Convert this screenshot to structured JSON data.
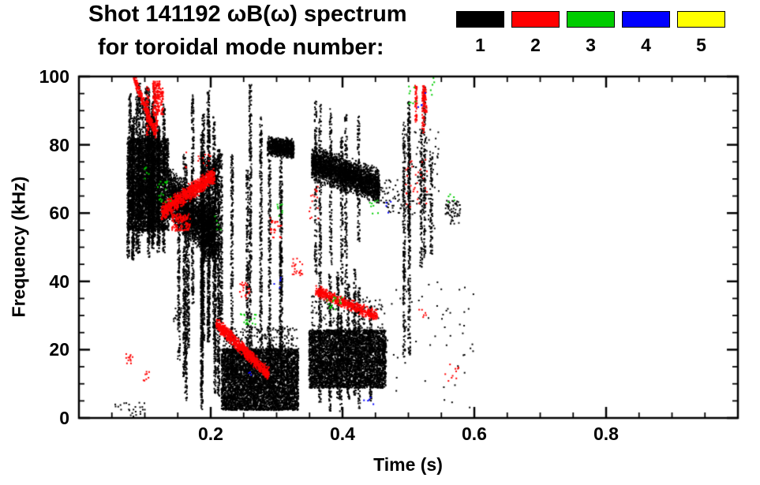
{
  "chart_data": {
    "type": "scatter",
    "title": "Shot 141192 ωB(ω) spectrum for toroidal mode number: 1 2 3 4 5",
    "title_lines": [
      "Shot 141192 ωB(ω) spectrum",
      "for toroidal mode number:"
    ],
    "xlabel": "Time (s)",
    "ylabel": "Frequency (kHz)",
    "xlim": [
      0.0,
      1.0
    ],
    "ylim": [
      0,
      100
    ],
    "xticks": [
      0.2,
      0.4,
      0.6,
      0.8
    ],
    "xtick_labels": [
      "0.2",
      "0.4",
      "0.6",
      "0.8"
    ],
    "yticks": [
      0,
      20,
      40,
      60,
      80,
      100
    ],
    "ytick_labels": [
      "0",
      "20",
      "40",
      "60",
      "80",
      "100"
    ],
    "x_minor_step": 0.05,
    "y_minor_step": 5,
    "grid": false,
    "legend": {
      "position": "top-right",
      "entries": [
        {
          "label": "1",
          "color": "#000000"
        },
        {
          "label": "2",
          "color": "#ff0000"
        },
        {
          "label": "3",
          "color": "#00cc00"
        },
        {
          "label": "4",
          "color": "#0000ff"
        },
        {
          "label": "5",
          "color": "#ffff00"
        }
      ]
    },
    "series": [
      {
        "name": "n=1",
        "color": "#000000",
        "clusters": [
          {
            "kind": "blob",
            "t": [
              0.073,
              0.135
            ],
            "f": [
              55,
              82
            ],
            "n": 3200
          },
          {
            "kind": "vstreaks",
            "t": [
              0.072,
              0.135
            ],
            "ftop": [
              82,
              100
            ],
            "fbot": [
              45,
              60
            ],
            "count": 22,
            "density": 2.5
          },
          {
            "kind": "band",
            "t": [
              0.135,
              0.205
            ],
            "f": [
              66,
              54
            ],
            "thick": 14,
            "n": 2600
          },
          {
            "kind": "vstreaks",
            "t": [
              0.14,
              0.215
            ],
            "ftop": [
              62,
              100
            ],
            "fbot": [
              2,
              35
            ],
            "count": 14,
            "density": 2
          },
          {
            "kind": "blob",
            "t": [
              0.185,
              0.212
            ],
            "f": [
              46,
              76
            ],
            "n": 900
          },
          {
            "kind": "vstreaks",
            "t": [
              0.205,
              0.215
            ],
            "ftop": [
              70,
              80
            ],
            "fbot": [
              2,
              10
            ],
            "count": 2,
            "density": 2.5
          },
          {
            "kind": "vstreaks",
            "t": [
              0.215,
              0.34
            ],
            "ftop": [
              55,
              100
            ],
            "fbot": [
              2,
              25
            ],
            "count": 7,
            "density": 1.8
          },
          {
            "kind": "band",
            "t": [
              0.285,
              0.325
            ],
            "f": [
              80,
              79
            ],
            "thick": 5,
            "n": 800
          },
          {
            "kind": "band",
            "t": [
              0.352,
              0.455
            ],
            "f": [
              75,
              68
            ],
            "thick": 9,
            "n": 2600
          },
          {
            "kind": "vstreaks",
            "t": [
              0.35,
              0.45
            ],
            "ftop": [
              80,
              97
            ],
            "fbot": [
              30,
              55
            ],
            "count": 6,
            "density": 1.5
          },
          {
            "kind": "blob",
            "t": [
              0.215,
              0.332
            ],
            "f": [
              2.5,
              20.5
            ],
            "n": 5200
          },
          {
            "kind": "specks",
            "t": [
              0.215,
              0.33
            ],
            "f": [
              20,
              27
            ],
            "n": 200
          },
          {
            "kind": "blob",
            "t": [
              0.348,
              0.465
            ],
            "f": [
              9,
              26
            ],
            "n": 4300
          },
          {
            "kind": "specks",
            "t": [
              0.35,
              0.46
            ],
            "f": [
              26,
              36
            ],
            "n": 150
          },
          {
            "kind": "vstreaks",
            "t": [
              0.352,
              0.46
            ],
            "ftop": [
              30,
              45
            ],
            "fbot": [
              1,
              7
            ],
            "count": 8,
            "density": 2
          },
          {
            "kind": "vstreaks",
            "t": [
              0.49,
              0.535
            ],
            "ftop": [
              70,
              100
            ],
            "fbot": [
              18,
              60
            ],
            "count": 6,
            "density": 1.6
          },
          {
            "kind": "specks",
            "t": [
              0.49,
              0.545
            ],
            "f": [
              55,
              85
            ],
            "n": 90
          },
          {
            "kind": "specks",
            "t": [
              0.455,
              0.49
            ],
            "f": [
              60,
              70
            ],
            "n": 50
          },
          {
            "kind": "specks",
            "t": [
              0.555,
              0.578
            ],
            "f": [
              57,
              64
            ],
            "n": 60
          },
          {
            "kind": "specks",
            "t": [
              0.46,
              0.6
            ],
            "f": [
              2,
              40
            ],
            "n": 60
          },
          {
            "kind": "specks",
            "t": [
              0.05,
              0.1
            ],
            "f": [
              0.5,
              5
            ],
            "n": 25
          },
          {
            "kind": "specks",
            "t": [
              0.14,
              0.155
            ],
            "f": [
              28,
              34
            ],
            "n": 15
          }
        ]
      },
      {
        "name": "n=2",
        "color": "#ff0000",
        "clusters": [
          {
            "kind": "band",
            "t": [
              0.082,
              0.116
            ],
            "f": [
              100,
              83
            ],
            "thick": 3,
            "n": 260
          },
          {
            "kind": "vstreaks",
            "t": [
              0.096,
              0.128
            ],
            "ftop": [
              96,
              100
            ],
            "fbot": [
              82,
              90
            ],
            "count": 5,
            "density": 2.5
          },
          {
            "kind": "band",
            "t": [
              0.124,
              0.205
            ],
            "f": [
              60.5,
              71.5
            ],
            "thick": 4.5,
            "n": 850
          },
          {
            "kind": "blob",
            "t": [
              0.14,
              0.168
            ],
            "f": [
              55,
              60
            ],
            "n": 130
          },
          {
            "kind": "specks",
            "t": [
              0.07,
              0.082
            ],
            "f": [
              16,
              19
            ],
            "n": 12
          },
          {
            "kind": "specks",
            "t": [
              0.096,
              0.106
            ],
            "f": [
              11,
              14
            ],
            "n": 8
          },
          {
            "kind": "band",
            "t": [
              0.207,
              0.287
            ],
            "f": [
              28,
              13
            ],
            "thick": 3.5,
            "n": 800
          },
          {
            "kind": "specks",
            "t": [
              0.243,
              0.258
            ],
            "f": [
              35,
              40
            ],
            "n": 22
          },
          {
            "kind": "specks",
            "t": [
              0.288,
              0.306
            ],
            "f": [
              53,
              59
            ],
            "n": 26
          },
          {
            "kind": "specks",
            "t": [
              0.322,
              0.338
            ],
            "f": [
              42,
              47
            ],
            "n": 22
          },
          {
            "kind": "band",
            "t": [
              0.358,
              0.452
            ],
            "f": [
              37.5,
              30
            ],
            "thick": 3,
            "n": 480
          },
          {
            "kind": "specks",
            "t": [
              0.348,
              0.362
            ],
            "f": [
              58,
              70
            ],
            "n": 16
          },
          {
            "kind": "specks",
            "t": [
              0.16,
              0.2
            ],
            "f": [
              73,
              78
            ],
            "n": 14
          },
          {
            "kind": "specks",
            "t": [
              0.495,
              0.528
            ],
            "f": [
              62,
              76
            ],
            "n": 30
          },
          {
            "kind": "vstreaks",
            "t": [
              0.505,
              0.525
            ],
            "ftop": [
              95,
              100
            ],
            "fbot": [
              83,
              90
            ],
            "count": 3,
            "density": 2.2
          },
          {
            "kind": "specks",
            "t": [
              0.553,
              0.575
            ],
            "f": [
              11,
              16
            ],
            "n": 10
          },
          {
            "kind": "specks",
            "t": [
              0.515,
              0.53
            ],
            "f": [
              28,
              33
            ],
            "n": 6
          }
        ]
      },
      {
        "name": "n=3",
        "color": "#00cc00",
        "clusters": [
          {
            "kind": "specks",
            "t": [
              0.118,
              0.138
            ],
            "f": [
              63,
              70
            ],
            "n": 20
          },
          {
            "kind": "specks",
            "t": [
              0.097,
              0.107
            ],
            "f": [
              70,
              74
            ],
            "n": 6
          },
          {
            "kind": "specks",
            "t": [
              0.243,
              0.268
            ],
            "f": [
              27,
              32
            ],
            "n": 16
          },
          {
            "kind": "specks",
            "t": [
              0.292,
              0.308
            ],
            "f": [
              59,
              63
            ],
            "n": 8
          },
          {
            "kind": "specks",
            "t": [
              0.374,
              0.404
            ],
            "f": [
              32,
              36
            ],
            "n": 16
          },
          {
            "kind": "specks",
            "t": [
              0.44,
              0.458
            ],
            "f": [
              60,
              64
            ],
            "n": 8
          },
          {
            "kind": "specks",
            "t": [
              0.497,
              0.512
            ],
            "f": [
              92,
              99
            ],
            "n": 8
          },
          {
            "kind": "specks",
            "t": [
              0.523,
              0.538
            ],
            "f": [
              94,
              100
            ],
            "n": 5
          },
          {
            "kind": "specks",
            "t": [
              0.558,
              0.57
            ],
            "f": [
              62,
              66
            ],
            "n": 5
          },
          {
            "kind": "specks",
            "t": [
              0.205,
              0.215
            ],
            "f": [
              55,
              60
            ],
            "n": 5
          }
        ]
      },
      {
        "name": "n=4",
        "color": "#0000ff",
        "clusters": [
          {
            "kind": "specks",
            "t": [
              0.294,
              0.306
            ],
            "f": [
              38,
              42
            ],
            "n": 5
          },
          {
            "kind": "specks",
            "t": [
              0.428,
              0.446
            ],
            "f": [
              3,
              7
            ],
            "n": 5
          },
          {
            "kind": "specks",
            "t": [
              0.463,
              0.476
            ],
            "f": [
              60,
              64
            ],
            "n": 4
          },
          {
            "kind": "specks",
            "t": [
              0.513,
              0.526
            ],
            "f": [
              91,
              96
            ],
            "n": 4
          },
          {
            "kind": "specks",
            "t": [
              0.248,
              0.262
            ],
            "f": [
              12,
              15
            ],
            "n": 3
          }
        ]
      },
      {
        "name": "n=5",
        "color": "#ffff00",
        "clusters": []
      }
    ]
  }
}
